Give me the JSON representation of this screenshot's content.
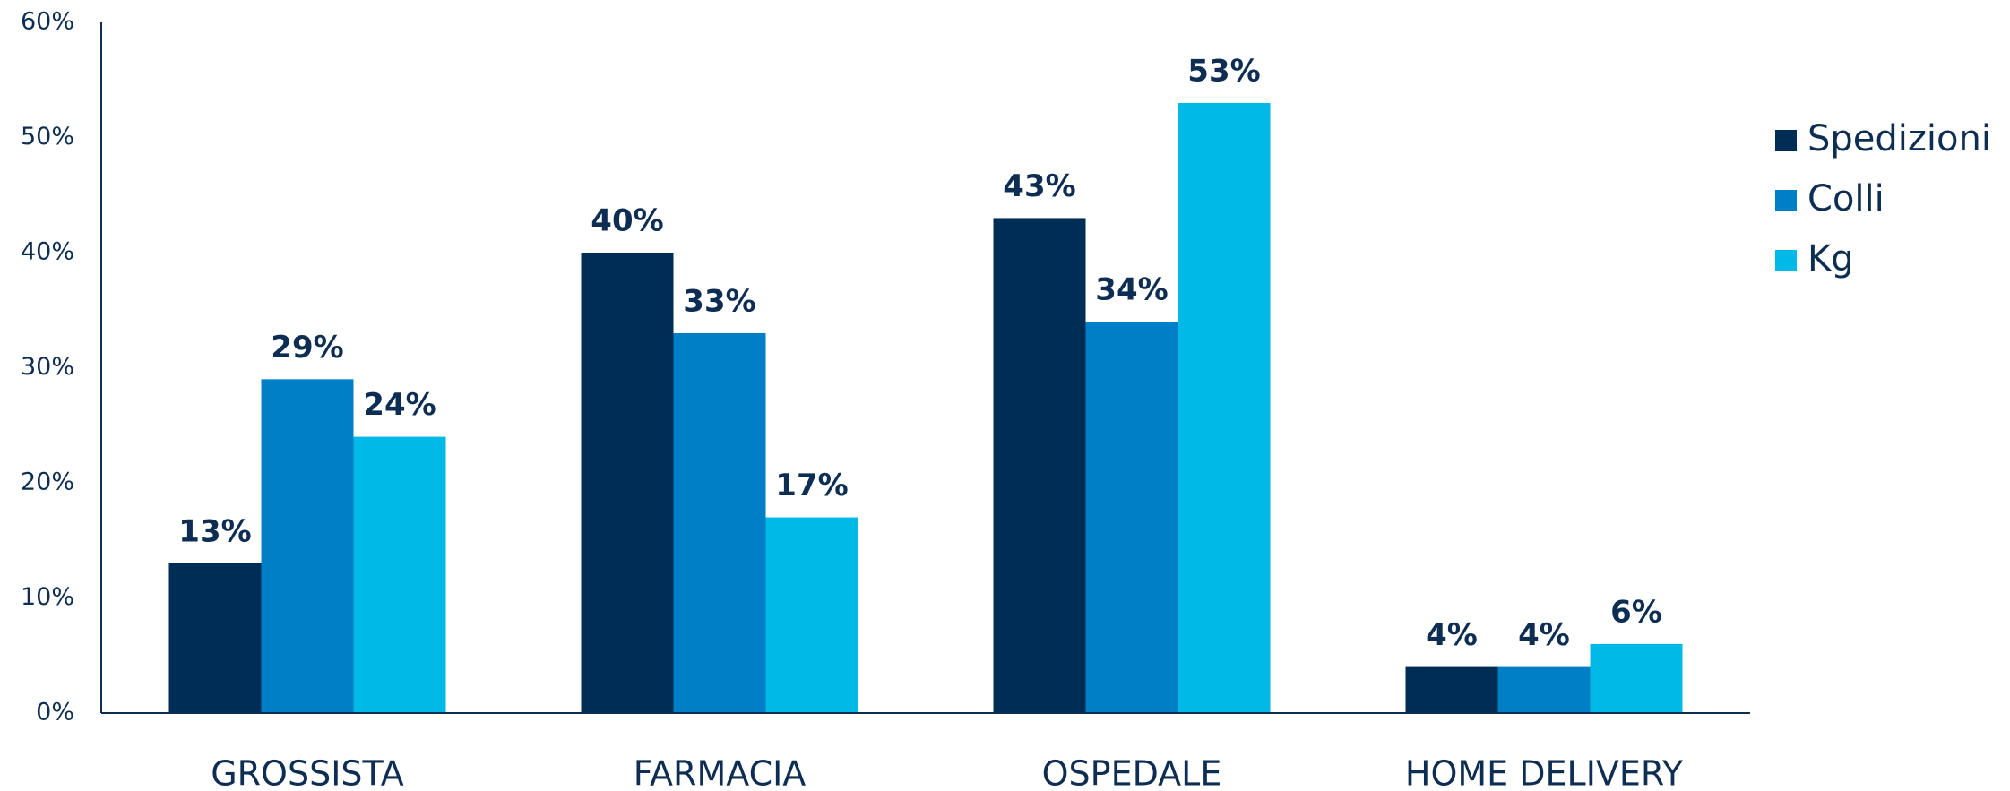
{
  "chart_data": {
    "type": "bar",
    "categories": [
      "GROSSISTA",
      "FARMACIA",
      "OSPEDALE",
      "HOME DELIVERY"
    ],
    "series": [
      {
        "name": "Spedizioni",
        "color": "#002d56",
        "values": [
          13,
          40,
          43,
          4
        ],
        "value_labels": [
          "13%",
          "40%",
          "43%",
          "4%"
        ]
      },
      {
        "name": "Colli",
        "color": "#007ec6",
        "values": [
          29,
          33,
          34,
          4
        ],
        "value_labels": [
          "29%",
          "33%",
          "34%",
          "4%"
        ]
      },
      {
        "name": "Kg",
        "color": "#00b9e6",
        "values": [
          24,
          17,
          53,
          6
        ],
        "value_labels": [
          "24%",
          "17%",
          "53%",
          "6%"
        ]
      }
    ],
    "ylim": [
      0,
      60
    ],
    "yticks": [
      {
        "value": 0,
        "label": "0%"
      },
      {
        "value": 10,
        "label": "10%"
      },
      {
        "value": 20,
        "label": "20%"
      },
      {
        "value": 30,
        "label": "30%"
      },
      {
        "value": 40,
        "label": "40%"
      },
      {
        "value": 50,
        "label": "50%"
      },
      {
        "value": 60,
        "label": "60%"
      }
    ],
    "grid": false,
    "legend": "right"
  }
}
